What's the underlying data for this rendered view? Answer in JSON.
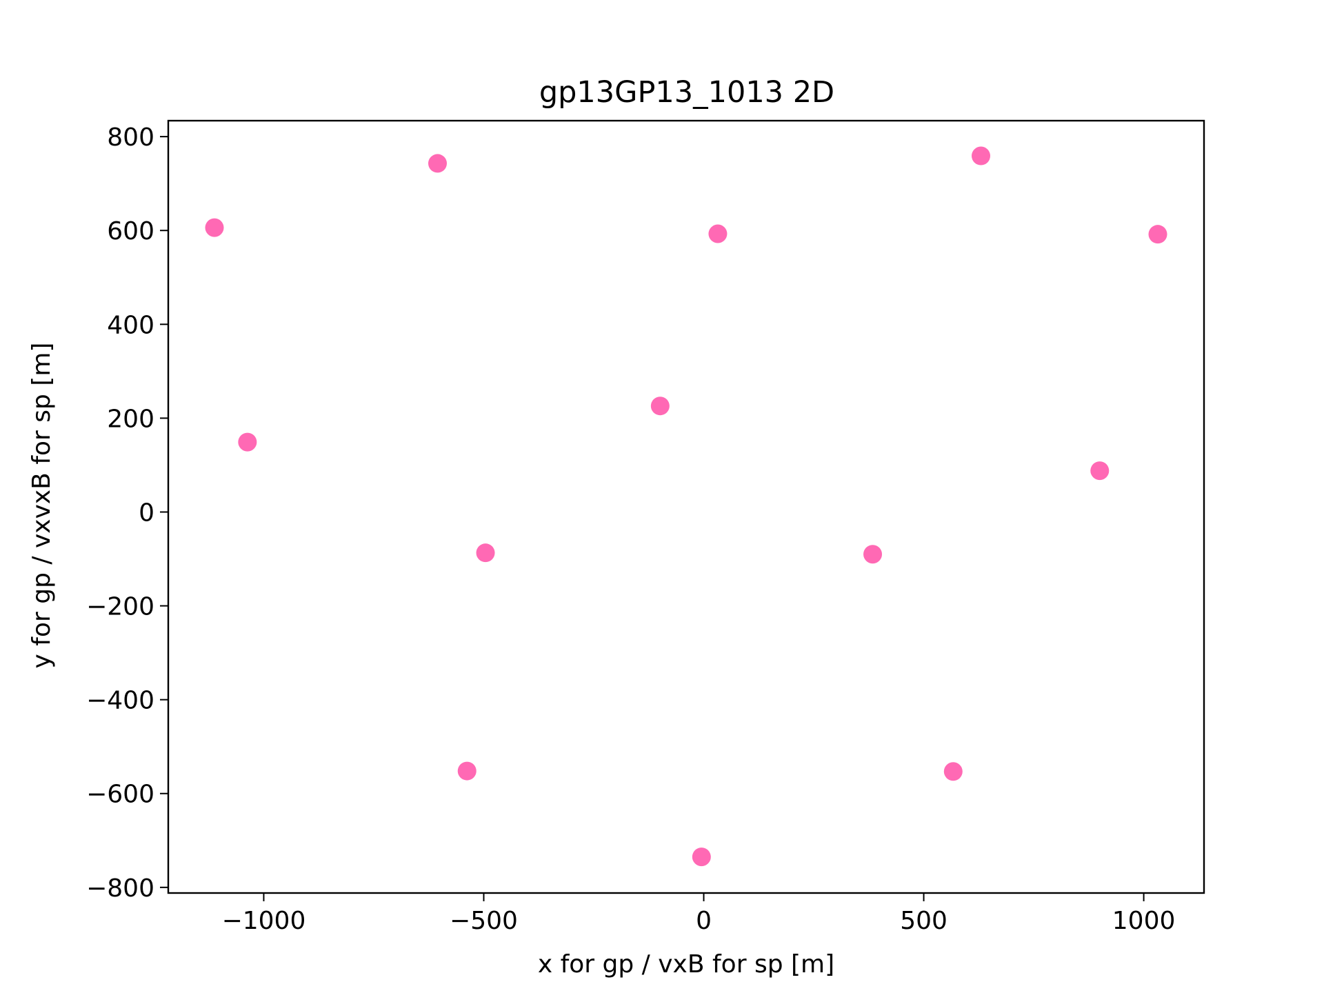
{
  "chart_data": {
    "type": "scatter",
    "title": "gp13GP13_1013 2D",
    "xlabel": "x for gp / vxB for sp [m]",
    "ylabel": "y for gp / vxvxB for sp [m]",
    "xlim": [
      -1217,
      1137
    ],
    "ylim": [
      -812,
      834
    ],
    "xticks": [
      -1000,
      -500,
      0,
      500,
      1000
    ],
    "xtick_labels": [
      "−1000",
      "−500",
      "0",
      "500",
      "1000"
    ],
    "yticks": [
      -800,
      -600,
      -400,
      -200,
      0,
      200,
      400,
      600,
      800
    ],
    "ytick_labels": [
      "−800",
      "−600",
      "−400",
      "−200",
      "0",
      "200",
      "400",
      "600",
      "800"
    ],
    "grid": false,
    "legend": false,
    "marker_color": "#ff69b4",
    "points": [
      {
        "x": -1112,
        "y": 606
      },
      {
        "x": -605,
        "y": 743
      },
      {
        "x": 32,
        "y": 593
      },
      {
        "x": 630,
        "y": 759
      },
      {
        "x": 1032,
        "y": 592
      },
      {
        "x": -1037,
        "y": 149
      },
      {
        "x": -99,
        "y": 226
      },
      {
        "x": 900,
        "y": 88
      },
      {
        "x": -496,
        "y": -87
      },
      {
        "x": 384,
        "y": -90
      },
      {
        "x": -538,
        "y": -552
      },
      {
        "x": 567,
        "y": -553
      },
      {
        "x": -5,
        "y": -735
      }
    ]
  }
}
